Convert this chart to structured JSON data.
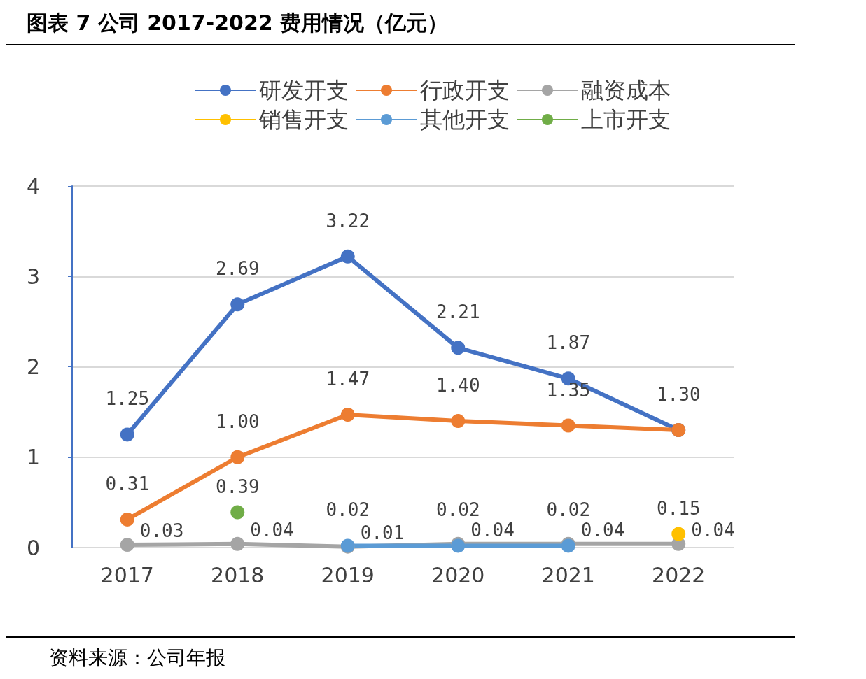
{
  "chart_data": {
    "type": "line",
    "title": "图表 7 公司 2017-2022 费用情况（亿元）",
    "annotations": [
      "资料来源：公司年报"
    ],
    "categories": [
      "2017",
      "2018",
      "2019",
      "2020",
      "2021",
      "2022"
    ],
    "series": [
      {
        "name": "研发开支",
        "color": "#4472c4",
        "values": [
          1.25,
          2.69,
          3.22,
          2.21,
          1.87,
          1.3
        ],
        "value_labels": [
          "1.25",
          "2.69",
          "3.22",
          "2.21",
          "1.87",
          "1.30"
        ]
      },
      {
        "name": "行政开支",
        "color": "#ed7d31",
        "values": [
          0.31,
          1.0,
          1.47,
          1.4,
          1.35,
          1.3
        ],
        "value_labels": [
          "0.31",
          "1.00",
          "1.47",
          "1.40",
          "1.35",
          null
        ]
      },
      {
        "name": "融资成本",
        "color": "#a5a5a5",
        "values": [
          0.03,
          0.04,
          0.01,
          0.04,
          0.04,
          0.04
        ],
        "value_labels": [
          "0.03",
          "0.04",
          "0.01",
          "0.04",
          "0.04",
          "0.04"
        ]
      },
      {
        "name": "销售开支",
        "color": "#ffc000",
        "values": [
          null,
          null,
          null,
          null,
          null,
          0.15
        ],
        "value_labels": [
          null,
          null,
          null,
          null,
          null,
          "0.15"
        ]
      },
      {
        "name": "其他开支",
        "color": "#5b9bd5",
        "values": [
          null,
          null,
          0.02,
          0.02,
          0.02,
          null
        ],
        "value_labels": [
          null,
          null,
          "0.02",
          "0.02",
          "0.02",
          null
        ]
      },
      {
        "name": "上市开支",
        "color": "#70ad47",
        "values": [
          null,
          0.39,
          null,
          null,
          null,
          null
        ],
        "value_labels": [
          null,
          "0.39",
          null,
          null,
          null,
          null
        ]
      }
    ],
    "ylim": [
      0,
      4
    ],
    "yticks": [
      0,
      1,
      2,
      3,
      4
    ],
    "grid": "y",
    "legend": "top",
    "marker": "circle",
    "line_style": "solid"
  }
}
